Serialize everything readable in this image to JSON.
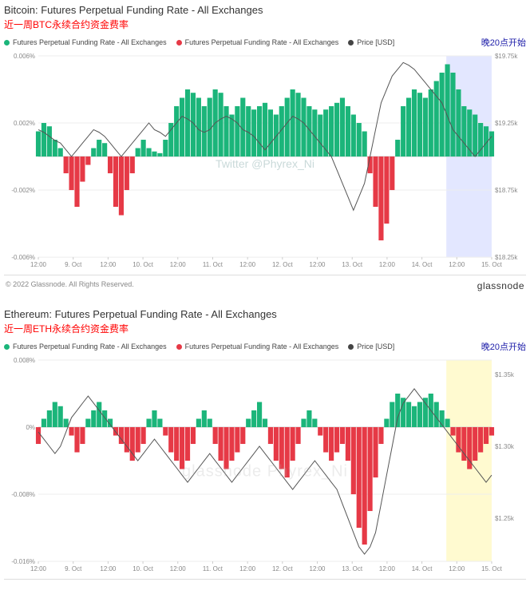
{
  "charts": [
    {
      "title": "Bitcoin: Futures Perpetual Funding Rate - All Exchanges",
      "subtitle": "近一周BTC永续合约资金费率",
      "legend": [
        {
          "label": "Futures Perpetual Funding Rate - All Exchanges",
          "color": "#1bb57a"
        },
        {
          "label": "Futures Perpetual Funding Rate - All Exchanges",
          "color": "#e63946"
        },
        {
          "label": "Price [USD]",
          "color": "#444444"
        }
      ],
      "annotation": "晚20点开始",
      "annotation_color": "#2020aa",
      "watermark": "Twitter @Phyrex_Ni",
      "y_left": {
        "min": -0.006,
        "max": 0.006,
        "ticks": [
          "0.006%",
          "0.002%",
          "-0.002%",
          "-0.006%"
        ],
        "tick_vals": [
          0.006,
          0.002,
          -0.002,
          -0.006
        ]
      },
      "y_right": {
        "min": 18250,
        "max": 19750,
        "ticks": [
          "$19.75k",
          "$19.25k",
          "$18.75k",
          "$18.25k"
        ],
        "tick_vals": [
          19750,
          19250,
          18750,
          18250
        ]
      },
      "x_ticks": [
        "12:00",
        "9. Oct",
        "12:00",
        "10. Oct",
        "12:00",
        "11. Oct",
        "12:00",
        "12. Oct",
        "12:00",
        "13. Oct",
        "12:00",
        "14. Oct",
        "12:00",
        "15. Oct"
      ],
      "highlight": {
        "start": 0.9,
        "end": 1.0,
        "color": "rgba(100,120,255,0.18)"
      },
      "positive_color": "#1bb57a",
      "negative_color": "#e63946",
      "price_color": "#555",
      "background_color": "#ffffff",
      "grid_color": "#eeeeee",
      "funding_data": [
        0.0015,
        0.002,
        0.0018,
        0.001,
        0.0005,
        -0.001,
        -0.002,
        -0.003,
        -0.0015,
        -0.0005,
        0.0005,
        0.001,
        0.0008,
        -0.001,
        -0.003,
        -0.0035,
        -0.002,
        -0.001,
        0.0005,
        0.001,
        0.0005,
        0.0003,
        0.0002,
        0.001,
        0.002,
        0.003,
        0.0035,
        0.004,
        0.0038,
        0.0035,
        0.003,
        0.0035,
        0.004,
        0.0038,
        0.003,
        0.0025,
        0.003,
        0.0035,
        0.003,
        0.0028,
        0.003,
        0.0032,
        0.0028,
        0.0025,
        0.003,
        0.0035,
        0.004,
        0.0038,
        0.0035,
        0.003,
        0.0028,
        0.0025,
        0.0028,
        0.003,
        0.0032,
        0.0035,
        0.003,
        0.0025,
        0.002,
        0.0015,
        -0.001,
        -0.003,
        -0.005,
        -0.004,
        -0.002,
        0.001,
        0.003,
        0.0035,
        0.004,
        0.0038,
        0.0035,
        0.004,
        0.0045,
        0.005,
        0.0055,
        0.005,
        0.004,
        0.003,
        0.0028,
        0.0025,
        0.002,
        0.0018,
        0.0015
      ],
      "price_data": [
        19200,
        19180,
        19150,
        19120,
        19100,
        19050,
        19000,
        19050,
        19100,
        19150,
        19200,
        19180,
        19150,
        19100,
        19050,
        19000,
        19050,
        19100,
        19150,
        19200,
        19250,
        19200,
        19180,
        19150,
        19200,
        19250,
        19300,
        19280,
        19250,
        19200,
        19180,
        19200,
        19250,
        19280,
        19300,
        19280,
        19250,
        19200,
        19180,
        19150,
        19100,
        19050,
        19100,
        19150,
        19200,
        19250,
        19300,
        19280,
        19250,
        19200,
        19150,
        19100,
        19050,
        19000,
        18900,
        18800,
        18700,
        18600,
        18700,
        18800,
        19000,
        19200,
        19400,
        19500,
        19600,
        19650,
        19700,
        19680,
        19650,
        19600,
        19550,
        19500,
        19450,
        19400,
        19300,
        19200,
        19150,
        19100,
        19050,
        19000,
        19050,
        19100,
        19150
      ],
      "footer_left": "© 2022 Glassnode. All Rights Reserved.",
      "footer_right": "glassnode"
    },
    {
      "title": "Ethereum: Futures Perpetual Funding Rate - All Exchanges",
      "subtitle": "近一周ETH永续合约资金费率",
      "legend": [
        {
          "label": "Futures Perpetual Funding Rate - All Exchanges",
          "color": "#1bb57a"
        },
        {
          "label": "Futures Perpetual Funding Rate - All Exchanges",
          "color": "#e63946"
        },
        {
          "label": "Price [USD]",
          "color": "#444444"
        }
      ],
      "annotation": "晚20点开始",
      "annotation_color": "#2020aa",
      "watermark2": "glassnode Phyrex_Ni",
      "y_left": {
        "min": -0.016,
        "max": 0.008,
        "ticks": [
          "0.008%",
          "0%",
          "-0.008%",
          "-0.016%"
        ],
        "tick_vals": [
          0.008,
          0,
          -0.008,
          -0.016
        ]
      },
      "y_right": {
        "min": 1220,
        "max": 1360,
        "ticks": [
          "$1.35k",
          "$1.30k",
          "$1.25k"
        ],
        "tick_vals": [
          1350,
          1300,
          1250
        ]
      },
      "x_ticks": [
        "12:00",
        "9. Oct",
        "12:00",
        "10. Oct",
        "12:00",
        "11. Oct",
        "12:00",
        "12. Oct",
        "12:00",
        "13. Oct",
        "12:00",
        "14. Oct",
        "12:00",
        "15. Oct"
      ],
      "highlight": {
        "start": 0.9,
        "end": 1.0,
        "color": "rgba(255,240,100,0.3)"
      },
      "positive_color": "#1bb57a",
      "negative_color": "#e63946",
      "price_color": "#555",
      "background_color": "#ffffff",
      "grid_color": "#eeeeee",
      "funding_data": [
        -0.002,
        0.001,
        0.002,
        0.003,
        0.0025,
        0.001,
        -0.001,
        -0.003,
        -0.002,
        0.001,
        0.002,
        0.003,
        0.002,
        0.001,
        -0.001,
        -0.002,
        -0.003,
        -0.004,
        -0.003,
        -0.002,
        0.001,
        0.002,
        0.001,
        -0.001,
        -0.003,
        -0.004,
        -0.005,
        -0.004,
        -0.002,
        0.001,
        0.002,
        0.001,
        -0.002,
        -0.004,
        -0.005,
        -0.004,
        -0.003,
        -0.002,
        0.001,
        0.002,
        0.003,
        0.001,
        -0.002,
        -0.004,
        -0.005,
        -0.006,
        -0.004,
        -0.002,
        0.001,
        0.002,
        0.001,
        -0.001,
        -0.003,
        -0.004,
        -0.003,
        -0.002,
        -0.004,
        -0.008,
        -0.012,
        -0.014,
        -0.01,
        -0.006,
        -0.002,
        0.001,
        0.003,
        0.004,
        0.0035,
        0.003,
        0.0025,
        0.003,
        0.0035,
        0.004,
        0.003,
        0.002,
        0.001,
        -0.001,
        -0.003,
        -0.004,
        -0.005,
        -0.004,
        -0.003,
        -0.002,
        -0.001
      ],
      "price_data": [
        1310,
        1305,
        1300,
        1295,
        1300,
        1310,
        1320,
        1325,
        1330,
        1335,
        1330,
        1325,
        1320,
        1315,
        1310,
        1305,
        1300,
        1295,
        1290,
        1295,
        1300,
        1305,
        1300,
        1295,
        1290,
        1285,
        1280,
        1275,
        1280,
        1285,
        1290,
        1295,
        1290,
        1285,
        1280,
        1275,
        1280,
        1285,
        1290,
        1295,
        1300,
        1295,
        1290,
        1285,
        1280,
        1275,
        1270,
        1275,
        1280,
        1285,
        1290,
        1285,
        1280,
        1275,
        1270,
        1260,
        1250,
        1240,
        1230,
        1225,
        1230,
        1240,
        1260,
        1280,
        1300,
        1320,
        1330,
        1335,
        1340,
        1335,
        1330,
        1325,
        1320,
        1315,
        1310,
        1305,
        1300,
        1295,
        1290,
        1285,
        1280,
        1275,
        1280
      ],
      "footer_left": "",
      "footer_right": ""
    }
  ]
}
